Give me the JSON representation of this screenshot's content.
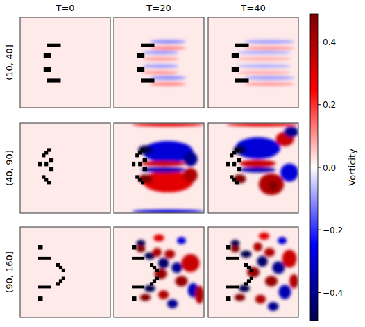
{
  "chart_data": {
    "type": "heatmap_grid",
    "columns": [
      "T=0",
      "T=20",
      "T=40"
    ],
    "background_vorticity": 0.02,
    "rows": [
      {
        "label": "(10, 40]",
        "obstacles": [
          [
            30,
            29,
            15,
            4
          ],
          [
            26,
            40,
            8,
            5
          ],
          [
            26,
            55,
            8,
            5
          ],
          [
            30,
            68,
            15,
            4
          ]
        ],
        "panels": [
          {
            "vortices": []
          },
          {
            "vortices": [
              [
                60,
                27,
                20,
                2,
                -0.12
              ],
              [
                60,
                34,
                20,
                2,
                0.12
              ],
              [
                52,
                39,
                20,
                2,
                -0.1
              ],
              [
                52,
                46,
                20,
                2,
                0.1
              ],
              [
                52,
                54,
                20,
                2,
                -0.1
              ],
              [
                52,
                61,
                20,
                2,
                0.1
              ],
              [
                60,
                67,
                20,
                2,
                -0.12
              ],
              [
                60,
                74,
                20,
                2,
                0.12
              ]
            ]
          },
          {
            "vortices": [
              [
                68,
                27,
                28,
                2,
                -0.1
              ],
              [
                68,
                34,
                28,
                2,
                0.1
              ],
              [
                62,
                39,
                30,
                2,
                -0.08
              ],
              [
                62,
                46,
                30,
                2,
                0.08
              ],
              [
                62,
                54,
                30,
                2,
                -0.08
              ],
              [
                62,
                61,
                30,
                2,
                0.08
              ],
              [
                68,
                67,
                28,
                2,
                -0.1
              ],
              [
                68,
                74,
                28,
                2,
                0.1
              ]
            ]
          }
        ]
      },
      {
        "label": "(40, 90]",
        "obstacles": [
          [
            30,
            28,
            4,
            4
          ],
          [
            27,
            31,
            4,
            4
          ],
          [
            24,
            34,
            4,
            4
          ],
          [
            20,
            43,
            4,
            5
          ],
          [
            27,
            43,
            4,
            5
          ],
          [
            32,
            39,
            5,
            5
          ],
          [
            32,
            49,
            5,
            5
          ],
          [
            24,
            58,
            4,
            4
          ],
          [
            27,
            61,
            4,
            4
          ],
          [
            30,
            64,
            4,
            4
          ]
        ],
        "panels": [
          {
            "vortices": []
          },
          {
            "vortices": [
              [
                60,
                32,
                28,
                12,
                -0.3
              ],
              [
                35,
                30,
                8,
                5,
                -0.5
              ],
              [
                60,
                65,
                28,
                12,
                0.3
              ],
              [
                35,
                62,
                8,
                5,
                0.5
              ],
              [
                55,
                45,
                25,
                3,
                0.35
              ],
              [
                55,
                52,
                25,
                3,
                -0.35
              ],
              [
                85,
                40,
                8,
                8,
                -0.4
              ],
              [
                85,
                58,
                8,
                8,
                0.4
              ],
              [
                60,
                2,
                40,
                2,
                0.3
              ],
              [
                60,
                98,
                40,
                2,
                -0.3
              ]
            ]
          },
          {
            "vortices": [
              [
                55,
                28,
                25,
                12,
                -0.3
              ],
              [
                85,
                18,
                10,
                8,
                0.35
              ],
              [
                92,
                10,
                8,
                6,
                -0.4
              ],
              [
                70,
                68,
                14,
                12,
                0.4
              ],
              [
                72,
                70,
                5,
                5,
                0.5
              ],
              [
                90,
                55,
                10,
                10,
                -0.3
              ],
              [
                55,
                45,
                20,
                4,
                0.35
              ],
              [
                55,
                52,
                20,
                3,
                -0.35
              ],
              [
                35,
                30,
                7,
                5,
                -0.5
              ],
              [
                35,
                62,
                7,
                5,
                0.5
              ],
              [
                60,
                2,
                40,
                2,
                0.3
              ]
            ]
          }
        ]
      },
      {
        "label": "(90, 160]",
        "obstacles": [
          [
            20,
            20,
            5,
            5
          ],
          [
            20,
            33,
            14,
            3
          ],
          [
            40,
            40,
            4,
            4
          ],
          [
            43,
            43,
            4,
            4
          ],
          [
            46,
            46,
            4,
            4
          ],
          [
            46,
            55,
            4,
            4
          ],
          [
            43,
            58,
            4,
            4
          ],
          [
            40,
            61,
            4,
            4
          ],
          [
            20,
            65,
            14,
            3
          ],
          [
            20,
            77,
            5,
            5
          ]
        ],
        "panels": [
          {
            "vortices": []
          },
          {
            "vortices": [
              [
                30,
                18,
                5,
                4,
                -0.5
              ],
              [
                30,
                24,
                5,
                4,
                0.5
              ],
              [
                40,
                32,
                6,
                4,
                -0.5
              ],
              [
                48,
                28,
                5,
                5,
                0.4
              ],
              [
                55,
                40,
                6,
                6,
                -0.45
              ],
              [
                52,
                52,
                7,
                6,
                0.45
              ],
              [
                62,
                30,
                6,
                5,
                0.4
              ],
              [
                70,
                45,
                6,
                6,
                -0.4
              ],
              [
                75,
                60,
                7,
                6,
                0.45
              ],
              [
                85,
                40,
                10,
                10,
                0.35
              ],
              [
                88,
                70,
                6,
                8,
                -0.35
              ],
              [
                40,
                68,
                6,
                4,
                -0.5
              ],
              [
                35,
                78,
                6,
                4,
                0.5
              ],
              [
                55,
                75,
                6,
                5,
                0.4
              ],
              [
                65,
                85,
                6,
                5,
                -0.4
              ],
              [
                50,
                12,
                6,
                4,
                0.3
              ],
              [
                75,
                15,
                5,
                4,
                -0.3
              ],
              [
                95,
                75,
                5,
                10,
                0.4
              ]
            ]
          },
          {
            "vortices": [
              [
                30,
                18,
                5,
                4,
                -0.5
              ],
              [
                30,
                24,
                5,
                4,
                0.5
              ],
              [
                42,
                30,
                6,
                4,
                -0.5
              ],
              [
                55,
                22,
                5,
                5,
                0.4
              ],
              [
                60,
                38,
                6,
                6,
                -0.45
              ],
              [
                50,
                50,
                7,
                6,
                0.45
              ],
              [
                68,
                28,
                6,
                5,
                0.4
              ],
              [
                78,
                45,
                7,
                7,
                -0.4
              ],
              [
                70,
                60,
                7,
                6,
                0.45
              ],
              [
                90,
                35,
                8,
                10,
                0.35
              ],
              [
                85,
                72,
                7,
                8,
                -0.35
              ],
              [
                40,
                68,
                6,
                4,
                -0.5
              ],
              [
                35,
                78,
                6,
                4,
                0.5
              ],
              [
                58,
                80,
                6,
                5,
                0.4
              ],
              [
                72,
                88,
                6,
                5,
                -0.4
              ],
              [
                62,
                10,
                6,
                4,
                0.3
              ],
              [
                82,
                15,
                5,
                4,
                -0.3
              ],
              [
                95,
                60,
                5,
                8,
                0.4
              ]
            ]
          }
        ]
      }
    ],
    "colorbar": {
      "label": "Vorticity",
      "range": [
        -0.49,
        0.49
      ],
      "ticks": [
        {
          "value": -0.4,
          "label": "−0.4"
        },
        {
          "value": -0.2,
          "label": "−0.2"
        },
        {
          "value": 0,
          "label": "0.0"
        },
        0.2,
        0.4
      ]
    }
  }
}
